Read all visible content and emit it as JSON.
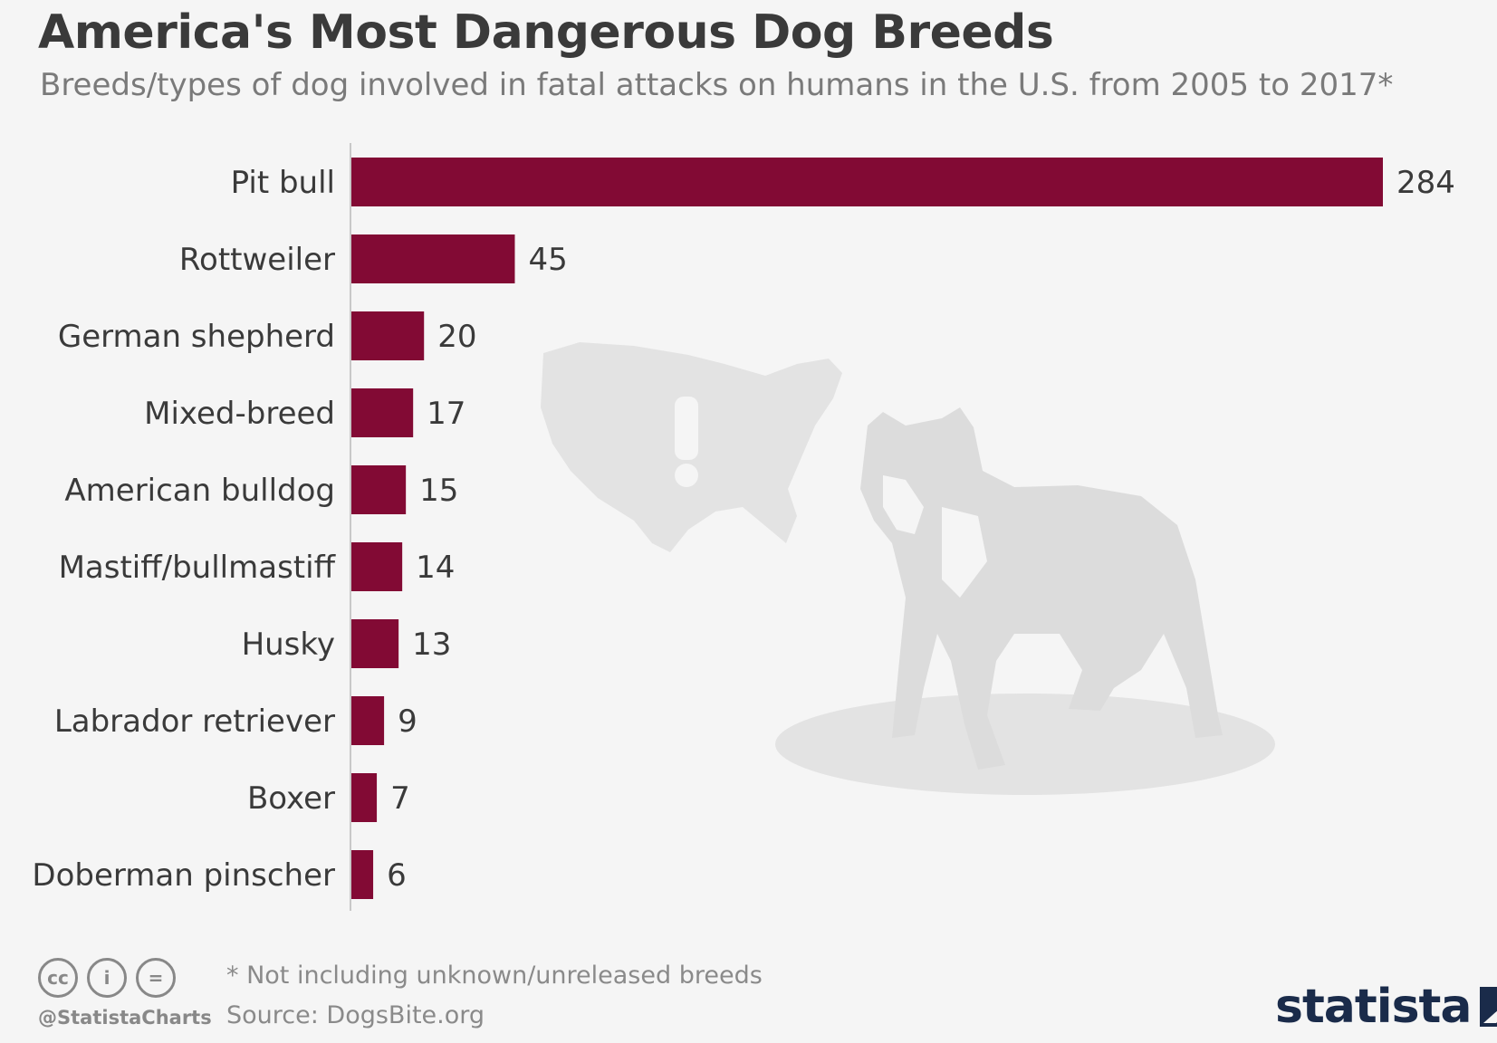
{
  "title": "America's Most Dangerous Dog Breeds",
  "subtitle": "Breeds/types of dog involved in fatal attacks on humans in the U.S. from 2005 to 2017*",
  "footnote": "* Not including unknown/unreleased breeds",
  "source": "Source: DogsBite.org",
  "handle": "@StatistaCharts",
  "brand": "statista",
  "cc_icons": [
    "cc",
    "i",
    "="
  ],
  "colors": {
    "bar": "#820a34",
    "background": "#f5f5f5",
    "watermark": "#e3e3e3"
  },
  "chart_data": {
    "type": "bar",
    "orientation": "horizontal",
    "title": "America's Most Dangerous Dog Breeds",
    "xlabel": "",
    "ylabel": "",
    "xlim": [
      0,
      284
    ],
    "grid": false,
    "categories": [
      "Pit bull",
      "Rottweiler",
      "German shepherd",
      "Mixed-breed",
      "American bulldog",
      "Mastiff/bullmastiff",
      "Husky",
      "Labrador retriever",
      "Boxer",
      "Doberman pinscher"
    ],
    "values": [
      284,
      45,
      20,
      17,
      15,
      14,
      13,
      9,
      7,
      6
    ]
  }
}
